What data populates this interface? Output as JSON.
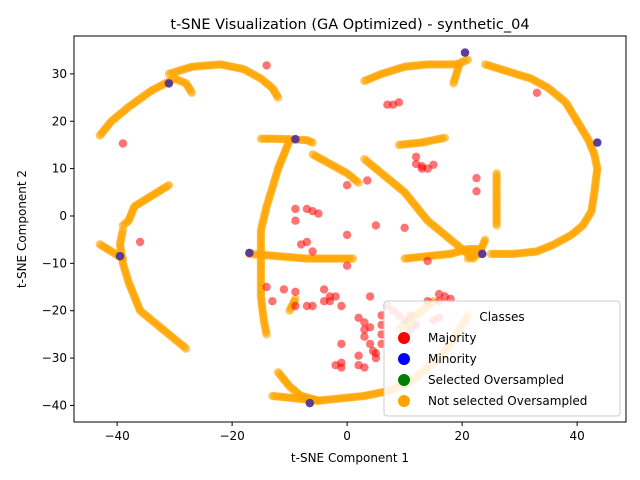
{
  "chart_data": {
    "type": "scatter",
    "title": "t-SNE Visualization (GA Optimized) - synthetic_04",
    "xlabel": "t-SNE Component 1",
    "ylabel": "t-SNE Component 2",
    "xlim": [
      -47.5,
      48.5
    ],
    "ylim": [
      -43.5,
      38
    ],
    "xticks": [
      -40,
      -20,
      0,
      20,
      40
    ],
    "yticks": [
      -40,
      -30,
      -20,
      -10,
      0,
      10,
      20,
      30
    ],
    "grid": false,
    "legend_position": "bottom-right",
    "legend": {
      "title": "Classes",
      "entries": [
        {
          "label": "Majority",
          "color": "#ff0000"
        },
        {
          "label": "Minority",
          "color": "#0000ff"
        },
        {
          "label": "Selected Oversampled",
          "color": "#008000"
        },
        {
          "label": "Not selected Oversampled",
          "color": "#ffa500"
        }
      ]
    },
    "series": [
      {
        "name": "Not selected Oversampled",
        "color": "#ffa500",
        "curves": [
          [
            [
              -43,
              17
            ],
            [
              -41,
              20
            ],
            [
              -38,
              23
            ],
            [
              -34,
              26.5
            ],
            [
              -30,
              29
            ],
            [
              -28,
              28
            ],
            [
              -27,
              26
            ]
          ],
          [
            [
              -31,
              30
            ],
            [
              -27,
              31.5
            ],
            [
              -22,
              32
            ],
            [
              -18,
              31
            ],
            [
              -15,
              29
            ],
            [
              -13,
              27
            ],
            [
              -12,
              25
            ]
          ],
          [
            [
              -39,
              -2
            ],
            [
              -38,
              -1
            ],
            [
              -37,
              2
            ],
            [
              -35,
              3.5
            ],
            [
              -33,
              5
            ],
            [
              -31,
              6.5
            ]
          ],
          [
            [
              -39,
              -3
            ],
            [
              -39.5,
              -6
            ],
            [
              -39,
              -10
            ],
            [
              -38,
              -14
            ],
            [
              -37,
              -17
            ],
            [
              -36,
              -20
            ],
            [
              -34,
              -22
            ],
            [
              -32,
              -24
            ],
            [
              -30,
              -26
            ],
            [
              -28,
              -28
            ]
          ],
          [
            [
              -43,
              -6
            ],
            [
              -41,
              -7.5
            ],
            [
              -39,
              -9
            ]
          ],
          [
            [
              -10,
              16
            ],
            [
              -11,
              13
            ],
            [
              -12,
              10
            ],
            [
              -13,
              6
            ],
            [
              -14,
              2
            ],
            [
              -15,
              -3
            ],
            [
              -15,
              -8
            ],
            [
              -15,
              -12
            ],
            [
              -15,
              -17
            ],
            [
              -14.5,
              -22
            ],
            [
              -14,
              -25
            ]
          ],
          [
            [
              -15,
              16.3
            ],
            [
              -13,
              16.3
            ],
            [
              -10,
              16.2
            ],
            [
              -7,
              16
            ],
            [
              -6,
              15.5
            ]
          ],
          [
            [
              -17,
              -8
            ],
            [
              -12,
              -8.5
            ],
            [
              -7,
              -9
            ],
            [
              -3,
              -9
            ],
            [
              1,
              -9
            ]
          ],
          [
            [
              -9,
              -17.5
            ],
            [
              -10,
              -20
            ]
          ],
          [
            [
              -12,
              -33
            ],
            [
              -10,
              -36
            ],
            [
              -8,
              -38
            ],
            [
              -5,
              -39
            ]
          ],
          [
            [
              -13,
              -38
            ],
            [
              -9,
              -38.5
            ],
            [
              -5,
              -39
            ],
            [
              -1,
              -38.5
            ],
            [
              3,
              -38
            ],
            [
              7,
              -37
            ]
          ],
          [
            [
              7,
              -37
            ],
            [
              11,
              -35
            ],
            [
              14,
              -32
            ],
            [
              16,
              -30
            ],
            [
              18,
              -27
            ],
            [
              20,
              -23
            ],
            [
              21,
              -21
            ]
          ],
          [
            [
              9,
              -24
            ],
            [
              11,
              -22
            ],
            [
              13,
              -20
            ],
            [
              15,
              -18
            ]
          ],
          [
            [
              -6,
              13
            ],
            [
              -3,
              11
            ],
            [
              0,
              9
            ],
            [
              2,
              7
            ]
          ],
          [
            [
              3,
              12
            ],
            [
              6,
              9
            ],
            [
              8,
              7
            ],
            [
              10,
              5
            ],
            [
              12,
              2
            ],
            [
              14,
              -1
            ],
            [
              16,
              -3
            ],
            [
              18,
              -5
            ],
            [
              20,
              -7
            ],
            [
              22,
              -9
            ]
          ],
          [
            [
              3,
              28.5
            ],
            [
              6,
              30
            ],
            [
              10,
              31.5
            ],
            [
              14,
              32
            ],
            [
              19,
              32
            ],
            [
              21,
              33
            ]
          ],
          [
            [
              9,
              15
            ],
            [
              13,
              15.5
            ],
            [
              17,
              16.5
            ]
          ],
          [
            [
              18.5,
              28
            ],
            [
              19,
              30
            ],
            [
              19.5,
              32
            ]
          ],
          [
            [
              10,
              -9
            ],
            [
              14,
              -8.5
            ],
            [
              18,
              -8
            ],
            [
              21,
              -7
            ],
            [
              23,
              -7
            ]
          ],
          [
            [
              24,
              -5
            ],
            [
              23,
              -8
            ],
            [
              21,
              -9
            ]
          ],
          [
            [
              26,
              9
            ],
            [
              26,
              6
            ],
            [
              26,
              3
            ],
            [
              26,
              0
            ],
            [
              26,
              -2
            ]
          ],
          [
            [
              24,
              32
            ],
            [
              28,
              30.5
            ],
            [
              32,
              29
            ],
            [
              35,
              27
            ],
            [
              38,
              24
            ],
            [
              40,
              20
            ]
          ],
          [
            [
              40,
              20
            ],
            [
              42,
              16
            ],
            [
              43,
              13
            ],
            [
              43.5,
              10
            ],
            [
              43,
              5
            ],
            [
              42.5,
              1
            ],
            [
              41,
              -2
            ],
            [
              39,
              -4
            ],
            [
              36,
              -6
            ],
            [
              33,
              -7.5
            ],
            [
              29,
              -8
            ],
            [
              25,
              -8
            ]
          ]
        ]
      },
      {
        "name": "Majority",
        "color": "#ff0000",
        "points": [
          [
            -39,
            15.3
          ],
          [
            -36,
            -5.5
          ],
          [
            -14,
            31.8
          ],
          [
            -14,
            -15
          ],
          [
            -13,
            -18
          ],
          [
            -11,
            -15.5
          ],
          [
            -9,
            -16
          ],
          [
            -9,
            -19
          ],
          [
            -8,
            -6
          ],
          [
            -7,
            -5.5
          ],
          [
            -7,
            -19
          ],
          [
            -6,
            -19
          ],
          [
            -6,
            1
          ],
          [
            -5,
            0.5
          ],
          [
            -9,
            1.5
          ],
          [
            -9,
            -1
          ],
          [
            -7,
            1.5
          ],
          [
            -6,
            -7.5
          ],
          [
            -4,
            -15.5
          ],
          [
            -4,
            -18
          ],
          [
            -3,
            -17
          ],
          [
            -3,
            -18
          ],
          [
            -2,
            -17
          ],
          [
            -1,
            -19
          ],
          [
            -1,
            -27
          ],
          [
            -1,
            -31
          ],
          [
            -2,
            -31.5
          ],
          [
            -1,
            -32
          ],
          [
            0,
            6.5
          ],
          [
            0,
            -4
          ],
          [
            0,
            -10.5
          ],
          [
            2,
            -21.5
          ],
          [
            2,
            -29.5
          ],
          [
            2,
            -31.5
          ],
          [
            3,
            -22.5
          ],
          [
            3,
            -24
          ],
          [
            3,
            -25.5
          ],
          [
            3,
            -32
          ],
          [
            3.5,
            7.5
          ],
          [
            4,
            -17
          ],
          [
            4,
            -23.5
          ],
          [
            4,
            -27
          ],
          [
            4.5,
            -28.5
          ],
          [
            5,
            -2
          ],
          [
            5,
            -29
          ],
          [
            5,
            -30
          ],
          [
            6,
            -21
          ],
          [
            6,
            -23
          ],
          [
            6,
            -25
          ],
          [
            6,
            -27
          ],
          [
            7,
            -19
          ],
          [
            7,
            23.5
          ],
          [
            8,
            23.5
          ],
          [
            8,
            -20
          ],
          [
            9,
            24
          ],
          [
            9,
            -21
          ],
          [
            10,
            -2.5
          ],
          [
            10,
            -22
          ],
          [
            11,
            -21
          ],
          [
            11,
            -24
          ],
          [
            12,
            12.5
          ],
          [
            12,
            11
          ],
          [
            13,
            10.5
          ],
          [
            13,
            10
          ],
          [
            14,
            10
          ],
          [
            14,
            -9.5
          ],
          [
            14,
            -18
          ],
          [
            15,
            10.8
          ],
          [
            16,
            -16.5
          ],
          [
            16,
            -18
          ],
          [
            17,
            -17
          ],
          [
            18,
            -17.5
          ],
          [
            22.5,
            8
          ],
          [
            22.5,
            5.2
          ],
          [
            33,
            26
          ],
          [
            16,
            -21.5
          ],
          [
            15,
            -22
          ],
          [
            12,
            -23
          ]
        ]
      },
      {
        "name": "Minority",
        "color": "#0000ff",
        "points": [
          [
            -31,
            28
          ],
          [
            -39.5,
            -8.5
          ],
          [
            -17,
            -7.8
          ],
          [
            -9,
            16.2
          ],
          [
            -6.5,
            -39.5
          ],
          [
            20.5,
            34.5
          ],
          [
            23.5,
            -8
          ],
          [
            43.5,
            15.5
          ]
        ]
      }
    ]
  }
}
